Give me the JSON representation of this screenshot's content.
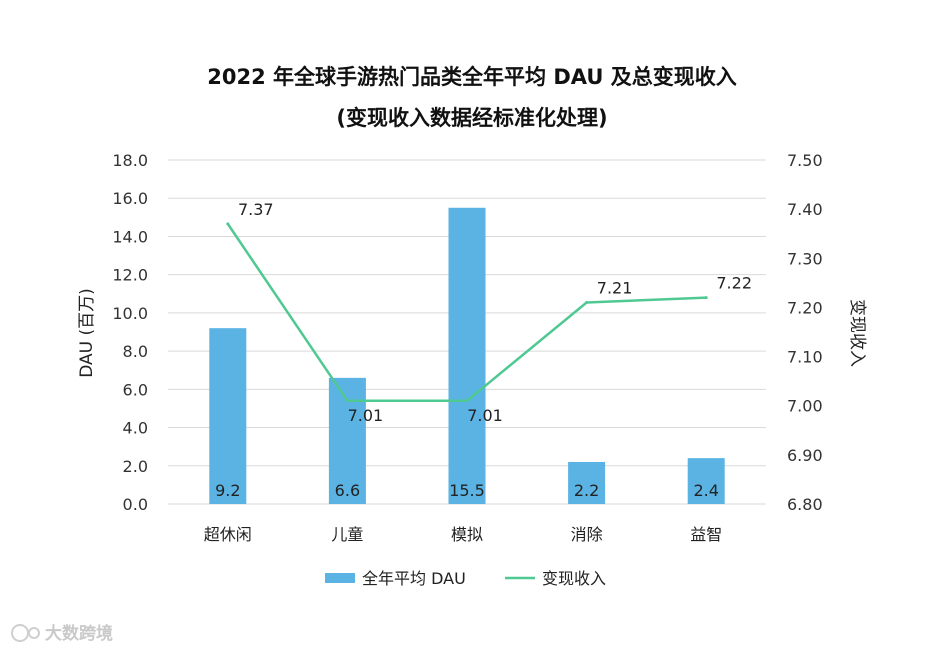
{
  "chart_data": {
    "type": "bar",
    "title": "2022 年全球手游热门品类全年平均 DAU 及总变现收入",
    "subtitle": "(变现收入数据经标准化处理)",
    "categories": [
      "超休闲",
      "儿童",
      "模拟",
      "消除",
      "益智"
    ],
    "ylabel": "DAU (百万)",
    "y2label": "变现收入",
    "ylim": [
      0,
      18
    ],
    "y2lim": [
      6.8,
      7.5
    ],
    "yticks": [
      "0.0",
      "2.0",
      "4.0",
      "6.0",
      "8.0",
      "10.0",
      "12.0",
      "14.0",
      "16.0",
      "18.0"
    ],
    "y2ticks": [
      "6.80",
      "6.90",
      "7.00",
      "7.10",
      "7.20",
      "7.30",
      "7.40",
      "7.50"
    ],
    "grid": true,
    "legend_position": "bottom",
    "series": [
      {
        "name": "全年平均 DAU",
        "type": "bar",
        "axis": "left",
        "color": "#5ab3e3",
        "values": [
          9.2,
          6.6,
          15.5,
          2.2,
          2.4
        ],
        "labels": [
          "9.2",
          "6.6",
          "15.5",
          "2.2",
          "2.4"
        ]
      },
      {
        "name": "变现收入",
        "type": "line",
        "axis": "right",
        "color": "#4fc991",
        "values": [
          7.37,
          7.01,
          7.01,
          7.21,
          7.22
        ],
        "labels": [
          "7.37",
          "7.01",
          "7.01",
          "7.21",
          "7.22"
        ]
      }
    ]
  },
  "watermark": "大数跨境"
}
